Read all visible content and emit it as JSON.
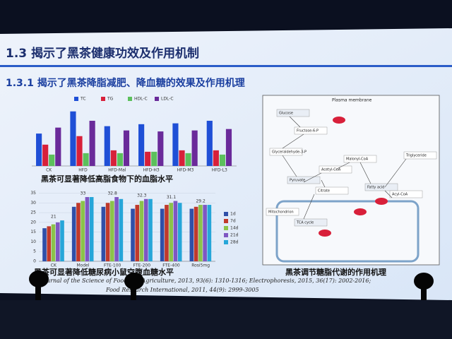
{
  "slide": {
    "heading": "1.3 揭示了黑茶健康功效及作用机制",
    "subheading": "1.3.1 揭示了黑茶降脂减肥、降血糖的效果及作用机理",
    "caption_lipid": "黑茶可显著降低高脂食物下的血脂水平",
    "caption_glucose": "黑茶可显著降低糖尿病小鼠空腹血糖水平",
    "diagram_title": "Plasma membrane",
    "diagram_caption": "黑茶调节糖脂代谢的作用机理",
    "diagram_nodes": [
      "Glucose",
      "Fructose-6-P",
      "Glyceraldehyde-3-P",
      "Pyruvate",
      "Acetyl-CoA",
      "Malonyl-CoA",
      "Fatty acid",
      "Triglyceride",
      "Citrate",
      "TCA cycle",
      "Acyl-CoA",
      "Mitochondrion"
    ],
    "references": [
      "Journal of the Science of Food and Agriculture, 2013, 93(6): 1310-1316; Electrophoresis, 2015, 36(17): 2002-2016;",
      "Food Research International, 2011, 44(9): 2999-3005"
    ]
  },
  "chart_data": [
    {
      "type": "bar",
      "categories": [
        "CK",
        "HFD",
        "HFD-Mal",
        "HFD-H3",
        "HFD-M3",
        "HFD-L3"
      ],
      "series": [
        {
          "name": "TC",
          "color": "#1f4fd6",
          "values": [
            2.28,
            3.84,
            2.8,
            2.94,
            3.0,
            3.18
          ]
        },
        {
          "name": "TG",
          "color": "#d8203a",
          "values": [
            1.5,
            2.1,
            1.1,
            1.0,
            1.1,
            1.1
          ]
        },
        {
          "name": "HDL-C",
          "color": "#5cc05c",
          "values": [
            0.8,
            0.9,
            0.9,
            1.0,
            0.9,
            0.8
          ]
        },
        {
          "name": "LDL-C",
          "color": "#6a2a9a",
          "values": [
            2.7,
            3.18,
            2.5,
            2.43,
            2.5,
            2.6
          ]
        }
      ]
    },
    {
      "type": "bar",
      "categories": [
        "CK",
        "Model",
        "FTE-100",
        "FTE-200",
        "FTE-400",
        "Rosi5mg"
      ],
      "series": [
        {
          "name": "1d",
          "color": "#2f4fa8",
          "values": [
            17,
            28,
            28,
            27,
            27,
            27
          ]
        },
        {
          "name": "7d",
          "color": "#c0392b",
          "values": [
            18,
            30,
            30,
            29,
            29,
            28
          ]
        },
        {
          "name": "14d",
          "color": "#8bc34a",
          "values": [
            19,
            31,
            31,
            31,
            30,
            29
          ]
        },
        {
          "name": "21d",
          "color": "#7e57c2",
          "values": [
            20,
            33,
            33,
            32,
            31,
            29
          ]
        },
        {
          "name": "28d",
          "color": "#26a6d9",
          "values": [
            21,
            33,
            32,
            32,
            30,
            29
          ]
        }
      ],
      "group_labels": [
        "21",
        "33",
        "32.8",
        "32.3",
        "31.1",
        "29.2"
      ],
      "ylim": [
        0,
        37
      ],
      "yticks": [
        0,
        5,
        10,
        15,
        20,
        25,
        30,
        35
      ]
    }
  ]
}
